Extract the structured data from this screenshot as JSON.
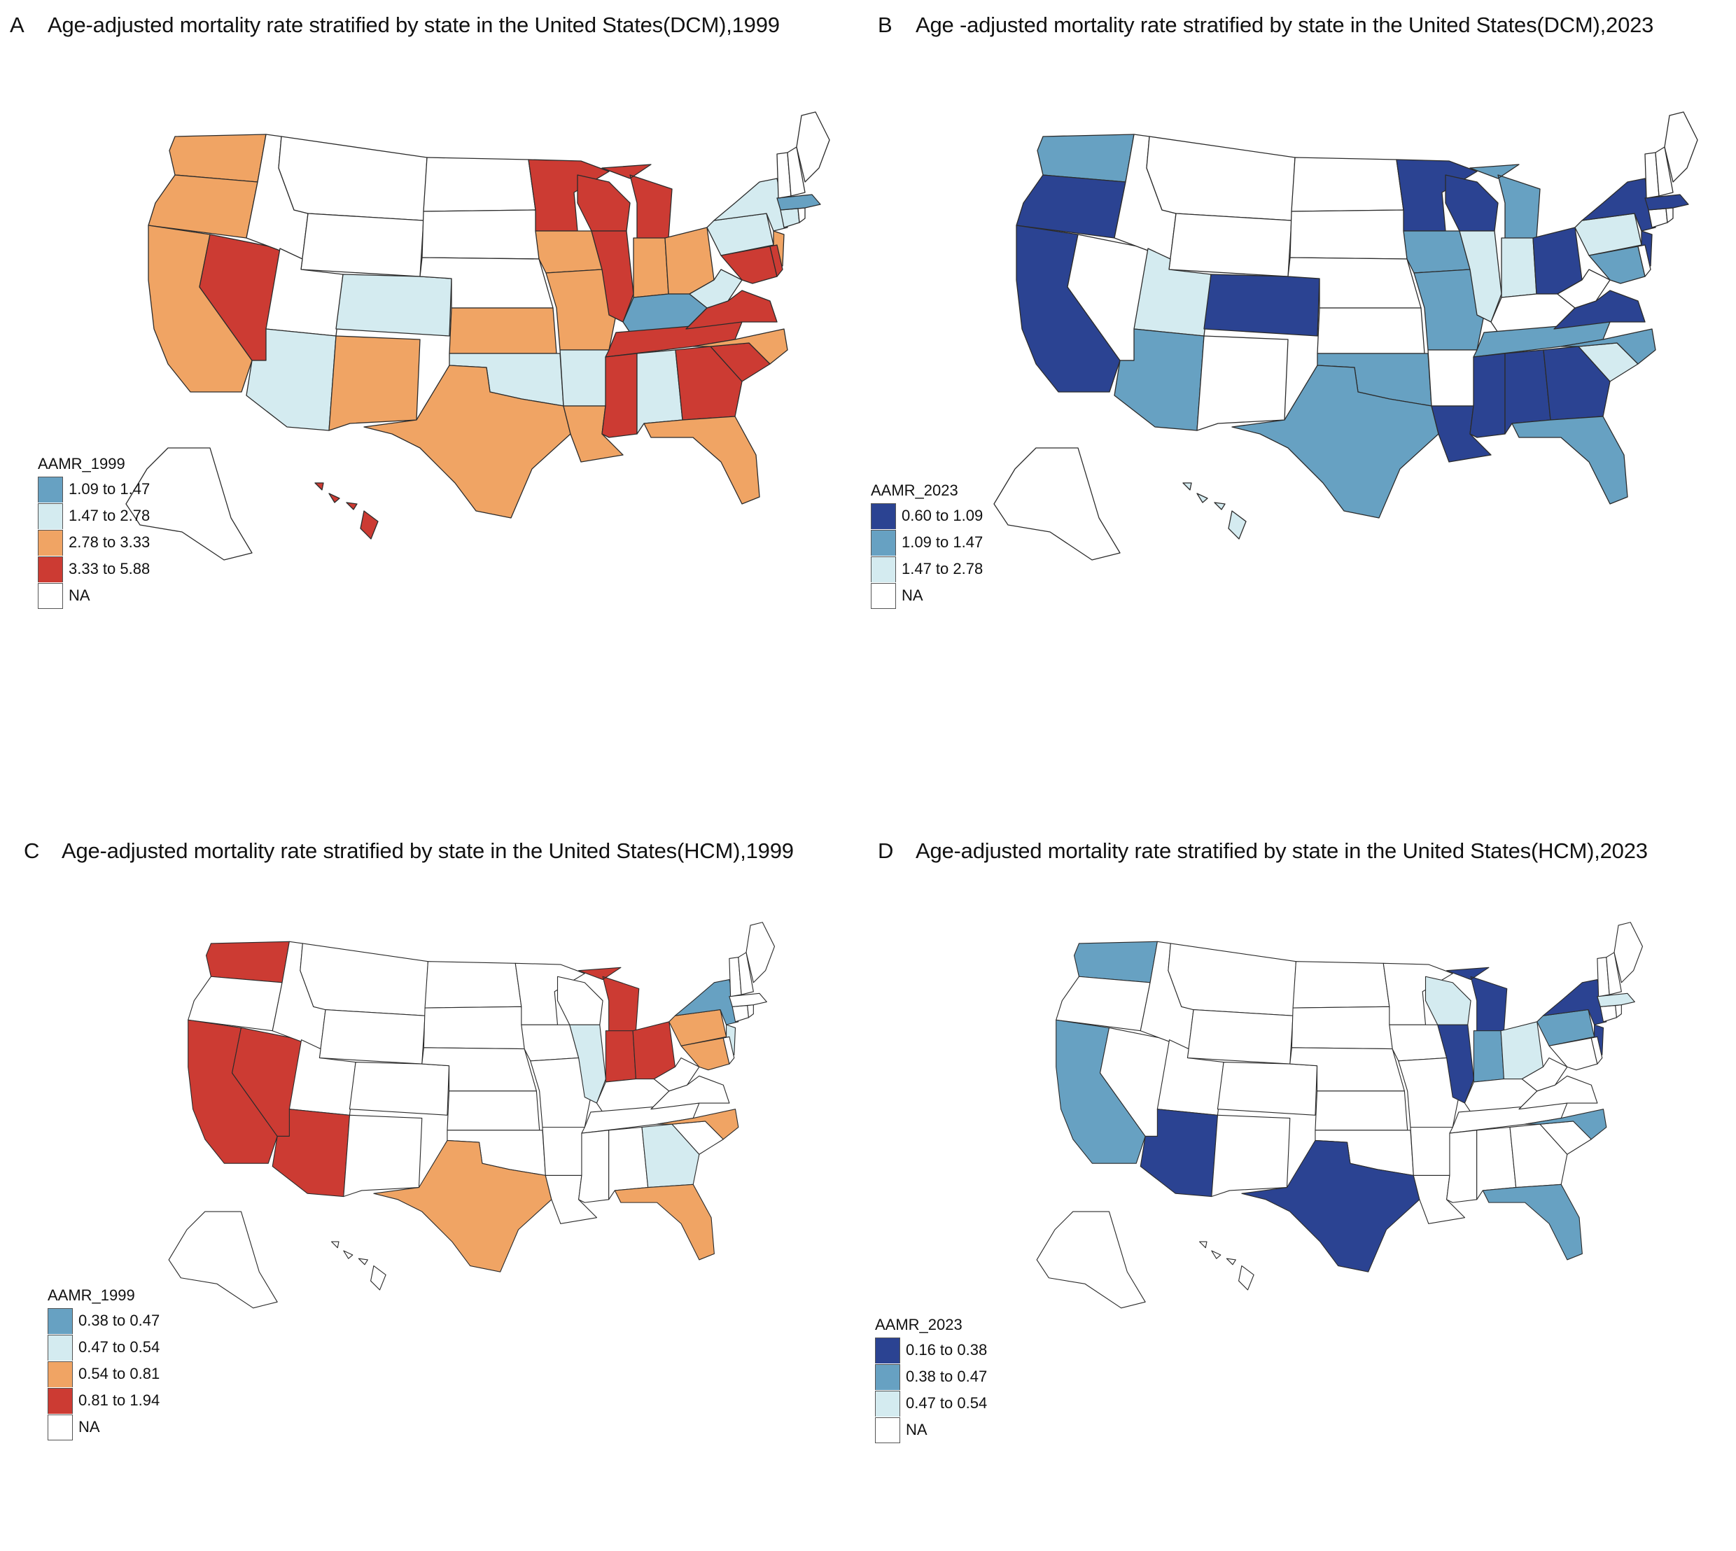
{
  "colors": {
    "dark_blue": "#2b4392",
    "mid_blue": "#67a1c2",
    "light_blue": "#d4ebf0",
    "orange": "#f0a464",
    "red": "#cc3b33",
    "na": "#ffffff",
    "outline": "#2b2b2b"
  },
  "chart_data": [
    {
      "type": "choropleth",
      "panel": "A",
      "title": "Age-adjusted mortality rate stratified by state in the United States(DCM),1999",
      "legend_title": "AAMR_1999",
      "legend_position": "bottom-left",
      "bins": [
        {
          "label": "1.09 to 1.47",
          "color": "#67a1c2"
        },
        {
          "label": "1.47 to 2.78",
          "color": "#d4ebf0"
        },
        {
          "label": "2.78 to 3.33",
          "color": "#f0a464"
        },
        {
          "label": "3.33 to 5.88",
          "color": "#cc3b33"
        },
        {
          "label": "NA",
          "color": "#ffffff"
        }
      ],
      "states": {
        "WA": "2.78 to 3.33",
        "OR": "2.78 to 3.33",
        "CA": "2.78 to 3.33",
        "NV": "3.33 to 5.88",
        "ID": "NA",
        "MT": "NA",
        "WY": "NA",
        "UT": "NA",
        "CO": "1.47 to 2.78",
        "AZ": "1.47 to 2.78",
        "NM": "2.78 to 3.33",
        "ND": "NA",
        "SD": "NA",
        "NE": "NA",
        "KS": "2.78 to 3.33",
        "OK": "1.47 to 2.78",
        "TX": "2.78 to 3.33",
        "MN": "3.33 to 5.88",
        "IA": "2.78 to 3.33",
        "MO": "2.78 to 3.33",
        "AR": "1.47 to 2.78",
        "LA": "2.78 to 3.33",
        "WI": "3.33 to 5.88",
        "IL": "3.33 to 5.88",
        "MI": "3.33 to 5.88",
        "IN": "2.78 to 3.33",
        "OH": "2.78 to 3.33",
        "KY": "1.09 to 1.47",
        "TN": "3.33 to 5.88",
        "MS": "3.33 to 5.88",
        "AL": "1.47 to 2.78",
        "GA": "3.33 to 5.88",
        "FL": "2.78 to 3.33",
        "SC": "3.33 to 5.88",
        "NC": "2.78 to 3.33",
        "VA": "3.33 to 5.88",
        "WV": "1.47 to 2.78",
        "PA": "1.47 to 2.78",
        "NY": "1.47 to 2.78",
        "NJ": "2.78 to 3.33",
        "MD": "3.33 to 5.88",
        "DE": "3.33 to 5.88",
        "CT": "1.47 to 2.78",
        "RI": "NA",
        "MA": "1.09 to 1.47",
        "VT": "NA",
        "NH": "NA",
        "ME": "NA",
        "AK": "NA",
        "HI": "3.33 to 5.88"
      }
    },
    {
      "type": "choropleth",
      "panel": "B",
      "title": "Age -adjusted mortality rate stratified by state in the United States(DCM),2023",
      "legend_title": "AAMR_2023",
      "legend_position": "bottom-left",
      "bins": [
        {
          "label": "0.60 to 1.09",
          "color": "#2b4392"
        },
        {
          "label": "1.09 to 1.47",
          "color": "#67a1c2"
        },
        {
          "label": "1.47 to 2.78",
          "color": "#d4ebf0"
        },
        {
          "label": "NA",
          "color": "#ffffff"
        }
      ],
      "states": {
        "WA": "1.09 to 1.47",
        "OR": "0.60 to 1.09",
        "CA": "0.60 to 1.09",
        "NV": "NA",
        "ID": "NA",
        "MT": "NA",
        "WY": "NA",
        "UT": "1.47 to 2.78",
        "CO": "0.60 to 1.09",
        "AZ": "1.09 to 1.47",
        "NM": "NA",
        "ND": "NA",
        "SD": "NA",
        "NE": "NA",
        "KS": "NA",
        "OK": "1.09 to 1.47",
        "TX": "1.09 to 1.47",
        "MN": "0.60 to 1.09",
        "IA": "1.09 to 1.47",
        "MO": "1.09 to 1.47",
        "AR": "NA",
        "LA": "0.60 to 1.09",
        "WI": "0.60 to 1.09",
        "IL": "1.47 to 2.78",
        "MI": "1.09 to 1.47",
        "IN": "1.47 to 2.78",
        "OH": "0.60 to 1.09",
        "KY": "NA",
        "TN": "1.09 to 1.47",
        "MS": "0.60 to 1.09",
        "AL": "0.60 to 1.09",
        "GA": "0.60 to 1.09",
        "FL": "1.09 to 1.47",
        "SC": "1.47 to 2.78",
        "NC": "1.09 to 1.47",
        "VA": "0.60 to 1.09",
        "WV": "NA",
        "PA": "1.47 to 2.78",
        "NY": "0.60 to 1.09",
        "NJ": "0.60 to 1.09",
        "MD": "1.09 to 1.47",
        "DE": "NA",
        "CT": "NA",
        "RI": "NA",
        "MA": "0.60 to 1.09",
        "VT": "NA",
        "NH": "NA",
        "ME": "NA",
        "AK": "NA",
        "HI": "1.47 to 2.78"
      }
    },
    {
      "type": "choropleth",
      "panel": "C",
      "title": "Age-adjusted mortality rate stratified by state in the United States(HCM),1999",
      "legend_title": "AAMR_1999",
      "legend_position": "bottom-left",
      "bins": [
        {
          "label": "0.38 to 0.47",
          "color": "#67a1c2"
        },
        {
          "label": "0.47 to 0.54",
          "color": "#d4ebf0"
        },
        {
          "label": "0.54 to 0.81",
          "color": "#f0a464"
        },
        {
          "label": "0.81 to 1.94",
          "color": "#cc3b33"
        },
        {
          "label": "NA",
          "color": "#ffffff"
        }
      ],
      "states": {
        "WA": "0.81 to 1.94",
        "OR": "NA",
        "CA": "0.81 to 1.94",
        "NV": "0.81 to 1.94",
        "ID": "NA",
        "MT": "NA",
        "WY": "NA",
        "UT": "NA",
        "CO": "NA",
        "AZ": "0.81 to 1.94",
        "NM": "NA",
        "ND": "NA",
        "SD": "NA",
        "NE": "NA",
        "KS": "NA",
        "OK": "NA",
        "TX": "0.54 to 0.81",
        "MN": "NA",
        "IA": "NA",
        "MO": "NA",
        "AR": "NA",
        "LA": "NA",
        "WI": "NA",
        "IL": "0.47 to 0.54",
        "MI": "0.81 to 1.94",
        "IN": "0.81 to 1.94",
        "OH": "0.81 to 1.94",
        "KY": "NA",
        "TN": "NA",
        "MS": "NA",
        "AL": "NA",
        "GA": "0.47 to 0.54",
        "FL": "0.54 to 0.81",
        "SC": "NA",
        "NC": "0.54 to 0.81",
        "VA": "NA",
        "WV": "NA",
        "PA": "0.54 to 0.81",
        "NY": "0.38 to 0.47",
        "NJ": "0.47 to 0.54",
        "MD": "0.54 to 0.81",
        "DE": "NA",
        "CT": "NA",
        "RI": "NA",
        "MA": "NA",
        "VT": "NA",
        "NH": "NA",
        "ME": "NA",
        "AK": "NA",
        "HI": "NA"
      }
    },
    {
      "type": "choropleth",
      "panel": "D",
      "title": "Age-adjusted mortality rate stratified by state in the United States(HCM),2023",
      "legend_title": "AAMR_2023",
      "legend_position": "bottom-left",
      "bins": [
        {
          "label": "0.16 to 0.38",
          "color": "#2b4392"
        },
        {
          "label": "0.38 to 0.47",
          "color": "#67a1c2"
        },
        {
          "label": "0.47 to 0.54",
          "color": "#d4ebf0"
        },
        {
          "label": "NA",
          "color": "#ffffff"
        }
      ],
      "states": {
        "WA": "0.38 to 0.47",
        "OR": "NA",
        "CA": "0.38 to 0.47",
        "NV": "NA",
        "ID": "NA",
        "MT": "NA",
        "WY": "NA",
        "UT": "NA",
        "CO": "NA",
        "AZ": "0.16 to 0.38",
        "NM": "NA",
        "ND": "NA",
        "SD": "NA",
        "NE": "NA",
        "KS": "NA",
        "OK": "NA",
        "TX": "0.16 to 0.38",
        "MN": "NA",
        "IA": "NA",
        "MO": "NA",
        "AR": "NA",
        "LA": "NA",
        "WI": "0.47 to 0.54",
        "IL": "0.16 to 0.38",
        "MI": "0.16 to 0.38",
        "IN": "0.38 to 0.47",
        "OH": "0.47 to 0.54",
        "KY": "NA",
        "TN": "NA",
        "MS": "NA",
        "AL": "NA",
        "GA": "NA",
        "FL": "0.38 to 0.47",
        "SC": "NA",
        "NC": "0.38 to 0.47",
        "VA": "NA",
        "WV": "NA",
        "PA": "0.38 to 0.47",
        "NY": "0.16 to 0.38",
        "NJ": "0.16 to 0.38",
        "MD": "NA",
        "DE": "NA",
        "CT": "NA",
        "RI": "NA",
        "MA": "0.47 to 0.54",
        "VT": "NA",
        "NH": "NA",
        "ME": "NA",
        "AK": "NA",
        "HI": "NA"
      }
    }
  ]
}
